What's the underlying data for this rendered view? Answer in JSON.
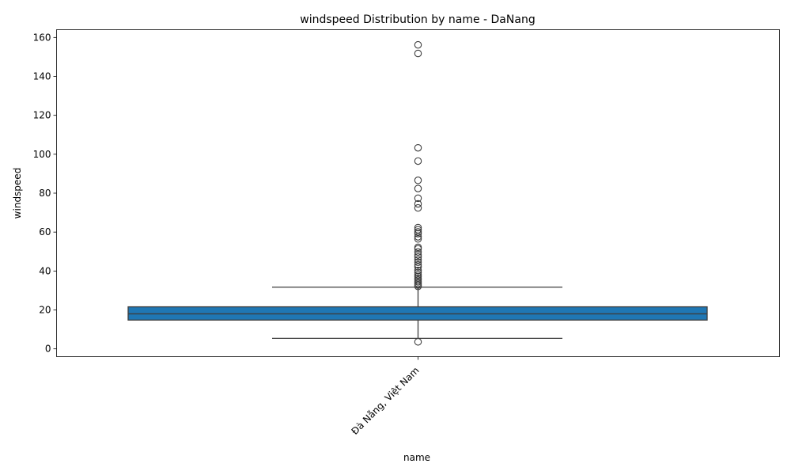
{
  "chart_data": {
    "type": "box",
    "title": "windspeed Distribution by name - DaNang",
    "xlabel": "name",
    "ylabel": "windspeed",
    "categories": [
      "Đà Nẵng, Việt Nam"
    ],
    "ylim": [
      -4,
      164
    ],
    "yticks": [
      "0",
      "20",
      "40",
      "60",
      "80",
      "100",
      "120",
      "140",
      "160"
    ],
    "grid": false,
    "box": {
      "whisker_low": 5.4,
      "q1": 14.8,
      "median": 18.0,
      "q3": 21.6,
      "whisker_high": 31.7
    },
    "outliers": [
      156.2,
      151.8,
      103.3,
      96.5,
      86.6,
      82.4,
      77.4,
      74.5,
      72.4,
      62.3,
      61.2,
      60.1,
      59.2,
      57.6,
      56.5,
      52.2,
      51.4,
      49.8,
      48.3,
      47.2,
      45.8,
      44.5,
      43.2,
      42.1,
      40.3,
      39.2,
      38.1,
      37.2,
      36.3,
      35.4,
      34.5,
      33.6,
      32.8,
      32.1,
      3.6
    ],
    "colors": {
      "box": "#1f77b4",
      "lines": "#3d3d3d"
    }
  }
}
